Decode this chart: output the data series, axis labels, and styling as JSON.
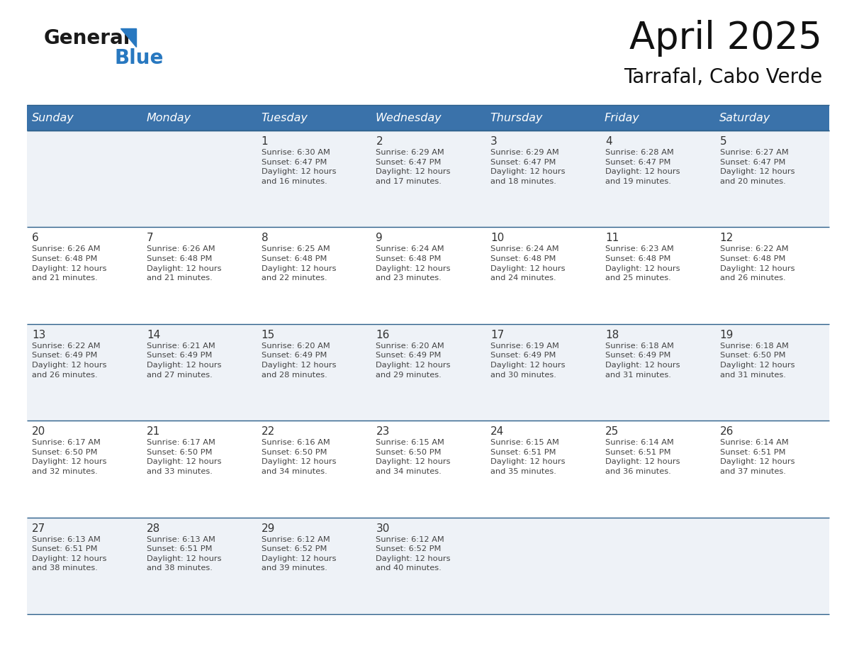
{
  "title": "April 2025",
  "subtitle": "Tarrafal, Cabo Verde",
  "header_bg_color": "#3a72aa",
  "header_text_color": "#ffffff",
  "cell_bg_color_light": "#eef2f7",
  "cell_bg_color_white": "#ffffff",
  "text_color": "#444444",
  "day_number_color": "#333333",
  "border_color": "#2c5f8a",
  "days_of_week": [
    "Sunday",
    "Monday",
    "Tuesday",
    "Wednesday",
    "Thursday",
    "Friday",
    "Saturday"
  ],
  "calendar_data": [
    [
      {
        "day": "",
        "info": ""
      },
      {
        "day": "",
        "info": ""
      },
      {
        "day": "1",
        "info": "Sunrise: 6:30 AM\nSunset: 6:47 PM\nDaylight: 12 hours\nand 16 minutes."
      },
      {
        "day": "2",
        "info": "Sunrise: 6:29 AM\nSunset: 6:47 PM\nDaylight: 12 hours\nand 17 minutes."
      },
      {
        "day": "3",
        "info": "Sunrise: 6:29 AM\nSunset: 6:47 PM\nDaylight: 12 hours\nand 18 minutes."
      },
      {
        "day": "4",
        "info": "Sunrise: 6:28 AM\nSunset: 6:47 PM\nDaylight: 12 hours\nand 19 minutes."
      },
      {
        "day": "5",
        "info": "Sunrise: 6:27 AM\nSunset: 6:47 PM\nDaylight: 12 hours\nand 20 minutes."
      }
    ],
    [
      {
        "day": "6",
        "info": "Sunrise: 6:26 AM\nSunset: 6:48 PM\nDaylight: 12 hours\nand 21 minutes."
      },
      {
        "day": "7",
        "info": "Sunrise: 6:26 AM\nSunset: 6:48 PM\nDaylight: 12 hours\nand 21 minutes."
      },
      {
        "day": "8",
        "info": "Sunrise: 6:25 AM\nSunset: 6:48 PM\nDaylight: 12 hours\nand 22 minutes."
      },
      {
        "day": "9",
        "info": "Sunrise: 6:24 AM\nSunset: 6:48 PM\nDaylight: 12 hours\nand 23 minutes."
      },
      {
        "day": "10",
        "info": "Sunrise: 6:24 AM\nSunset: 6:48 PM\nDaylight: 12 hours\nand 24 minutes."
      },
      {
        "day": "11",
        "info": "Sunrise: 6:23 AM\nSunset: 6:48 PM\nDaylight: 12 hours\nand 25 minutes."
      },
      {
        "day": "12",
        "info": "Sunrise: 6:22 AM\nSunset: 6:48 PM\nDaylight: 12 hours\nand 26 minutes."
      }
    ],
    [
      {
        "day": "13",
        "info": "Sunrise: 6:22 AM\nSunset: 6:49 PM\nDaylight: 12 hours\nand 26 minutes."
      },
      {
        "day": "14",
        "info": "Sunrise: 6:21 AM\nSunset: 6:49 PM\nDaylight: 12 hours\nand 27 minutes."
      },
      {
        "day": "15",
        "info": "Sunrise: 6:20 AM\nSunset: 6:49 PM\nDaylight: 12 hours\nand 28 minutes."
      },
      {
        "day": "16",
        "info": "Sunrise: 6:20 AM\nSunset: 6:49 PM\nDaylight: 12 hours\nand 29 minutes."
      },
      {
        "day": "17",
        "info": "Sunrise: 6:19 AM\nSunset: 6:49 PM\nDaylight: 12 hours\nand 30 minutes."
      },
      {
        "day": "18",
        "info": "Sunrise: 6:18 AM\nSunset: 6:49 PM\nDaylight: 12 hours\nand 31 minutes."
      },
      {
        "day": "19",
        "info": "Sunrise: 6:18 AM\nSunset: 6:50 PM\nDaylight: 12 hours\nand 31 minutes."
      }
    ],
    [
      {
        "day": "20",
        "info": "Sunrise: 6:17 AM\nSunset: 6:50 PM\nDaylight: 12 hours\nand 32 minutes."
      },
      {
        "day": "21",
        "info": "Sunrise: 6:17 AM\nSunset: 6:50 PM\nDaylight: 12 hours\nand 33 minutes."
      },
      {
        "day": "22",
        "info": "Sunrise: 6:16 AM\nSunset: 6:50 PM\nDaylight: 12 hours\nand 34 minutes."
      },
      {
        "day": "23",
        "info": "Sunrise: 6:15 AM\nSunset: 6:50 PM\nDaylight: 12 hours\nand 34 minutes."
      },
      {
        "day": "24",
        "info": "Sunrise: 6:15 AM\nSunset: 6:51 PM\nDaylight: 12 hours\nand 35 minutes."
      },
      {
        "day": "25",
        "info": "Sunrise: 6:14 AM\nSunset: 6:51 PM\nDaylight: 12 hours\nand 36 minutes."
      },
      {
        "day": "26",
        "info": "Sunrise: 6:14 AM\nSunset: 6:51 PM\nDaylight: 12 hours\nand 37 minutes."
      }
    ],
    [
      {
        "day": "27",
        "info": "Sunrise: 6:13 AM\nSunset: 6:51 PM\nDaylight: 12 hours\nand 38 minutes."
      },
      {
        "day": "28",
        "info": "Sunrise: 6:13 AM\nSunset: 6:51 PM\nDaylight: 12 hours\nand 38 minutes."
      },
      {
        "day": "29",
        "info": "Sunrise: 6:12 AM\nSunset: 6:52 PM\nDaylight: 12 hours\nand 39 minutes."
      },
      {
        "day": "30",
        "info": "Sunrise: 6:12 AM\nSunset: 6:52 PM\nDaylight: 12 hours\nand 40 minutes."
      },
      {
        "day": "",
        "info": ""
      },
      {
        "day": "",
        "info": ""
      },
      {
        "day": "",
        "info": ""
      }
    ]
  ],
  "logo_color_general": "#1a1a1a",
  "logo_color_blue": "#2878c0",
  "logo_triangle_color": "#2878c0",
  "title_fontsize": 38,
  "subtitle_fontsize": 20,
  "header_fontsize": 11.5,
  "day_num_fontsize": 11,
  "info_fontsize": 8.2
}
